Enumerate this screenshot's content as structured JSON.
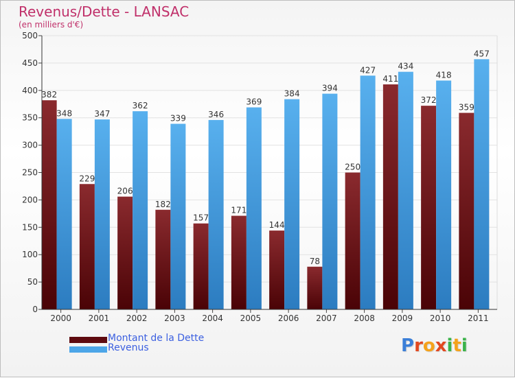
{
  "title": "Revenus/Dette - LANSAC",
  "subtitle": "(en milliers d'€)",
  "colors": {
    "dette": "#7a1a1f",
    "dette_dark": "#4a0508",
    "revenus": "#4da6e8",
    "revenus_dark": "#2f7fc4",
    "title": "#c0306a",
    "legend_text": "#3b5fe0"
  },
  "legend": [
    {
      "label": "Montant de la Dette",
      "color": "#6b0d12"
    },
    {
      "label": "Revenus",
      "color": "#4da6e8"
    }
  ],
  "logo": {
    "letters": [
      "P",
      "r",
      "o",
      "x",
      "i",
      "t",
      "i"
    ],
    "colors": [
      "#3b7fd8",
      "#e2481f",
      "#f5a21b",
      "#e2481f",
      "#3bb34a",
      "#f5a21b",
      "#3bb34a"
    ]
  },
  "chart_data": {
    "type": "bar",
    "categories": [
      "2000",
      "2001",
      "2002",
      "2003",
      "2004",
      "2005",
      "2006",
      "2007",
      "2008",
      "2009",
      "2010",
      "2011"
    ],
    "series": [
      {
        "name": "Montant de la Dette",
        "values": [
          382,
          229,
          206,
          182,
          157,
          171,
          144,
          78,
          250,
          411,
          372,
          359
        ]
      },
      {
        "name": "Revenus",
        "values": [
          348,
          347,
          362,
          339,
          346,
          369,
          384,
          394,
          427,
          434,
          418,
          457
        ]
      }
    ],
    "yticks": [
      0,
      50,
      100,
      150,
      200,
      250,
      300,
      350,
      400,
      450,
      500
    ],
    "ylim": [
      0,
      500
    ],
    "grid": true,
    "legend_position": "bottom-left"
  }
}
